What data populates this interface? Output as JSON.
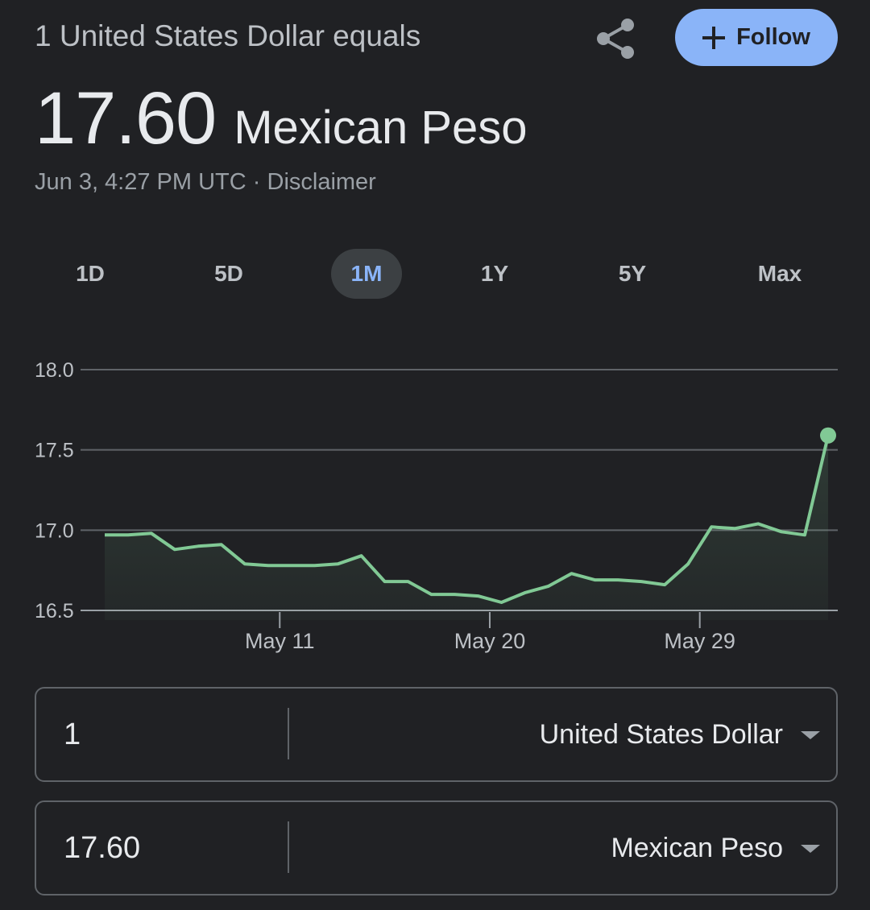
{
  "header": {
    "equals_label": "1 United States Dollar equals",
    "follow_label": "Follow",
    "share_icon": "share-icon",
    "plus_icon": "plus-icon"
  },
  "rate": {
    "value": "17.60",
    "currency": "Mexican Peso"
  },
  "meta": {
    "timestamp": "Jun 3, 4:27 PM UTC",
    "separator": " · ",
    "disclaimer": "Disclaimer"
  },
  "tabs": [
    {
      "label": "1D",
      "active": false
    },
    {
      "label": "5D",
      "active": false
    },
    {
      "label": "1M",
      "active": true
    },
    {
      "label": "1Y",
      "active": false
    },
    {
      "label": "5Y",
      "active": false
    },
    {
      "label": "Max",
      "active": false
    }
  ],
  "chart_data": {
    "type": "area",
    "y_ticks": [
      "18.0",
      "17.5",
      "17.0",
      "16.5"
    ],
    "ylim": [
      16.5,
      18.0
    ],
    "x_ticks": [
      {
        "label": "May 11",
        "index": 7.5
      },
      {
        "label": "May 20",
        "index": 16.5
      },
      {
        "label": "May 29",
        "index": 25.5
      }
    ],
    "values": [
      16.97,
      16.97,
      16.98,
      16.88,
      16.9,
      16.91,
      16.79,
      16.78,
      16.78,
      16.78,
      16.79,
      16.84,
      16.68,
      16.68,
      16.6,
      16.6,
      16.59,
      16.55,
      16.61,
      16.65,
      16.73,
      16.69,
      16.69,
      16.68,
      16.66,
      16.79,
      17.02,
      17.01,
      17.04,
      16.99,
      16.97,
      17.59
    ],
    "line_color": "#81c995",
    "grid": true
  },
  "converter": {
    "from_amount": "1",
    "from_currency": "United States Dollar",
    "to_amount": "17.60",
    "to_currency": "Mexican Peso"
  }
}
